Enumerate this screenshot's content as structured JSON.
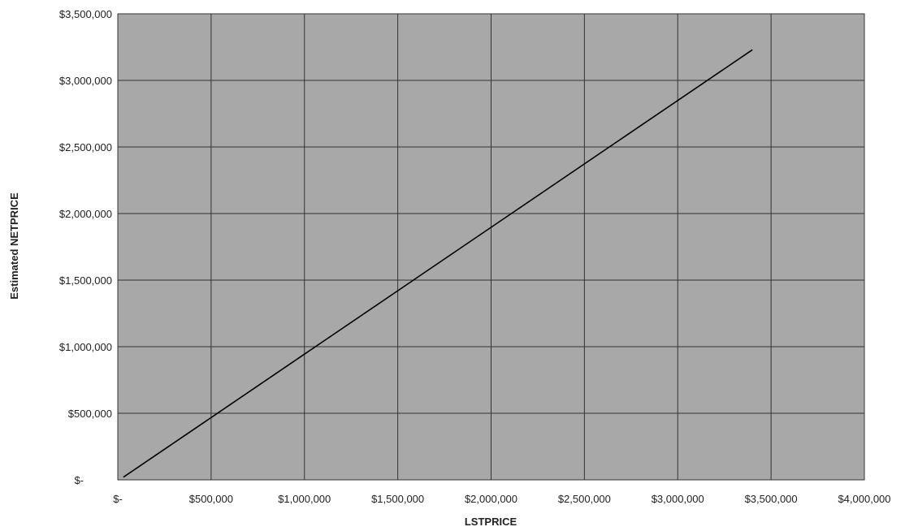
{
  "chart_data": {
    "type": "line",
    "title": "",
    "xlabel": "LSTPRICE",
    "ylabel": "Estimated NETPRICE",
    "xlim": [
      0,
      4000000
    ],
    "ylim": [
      0,
      3500000
    ],
    "x_ticks": [
      0,
      500000,
      1000000,
      1500000,
      2000000,
      2500000,
      3000000,
      3500000,
      4000000
    ],
    "y_ticks": [
      0,
      500000,
      1000000,
      1500000,
      2000000,
      2500000,
      3000000,
      3500000
    ],
    "x_tick_labels": [
      "$-",
      "$500,000",
      "$1,000,000",
      "$1,500,000",
      "$2,000,000",
      "$2,500,000",
      "$3,000,000",
      "$3,500,000",
      "$4,000,000"
    ],
    "y_tick_labels": [
      "$-",
      "$500,000",
      "$1,000,000",
      "$1,500,000",
      "$2,000,000",
      "$2,500,000",
      "$3,000,000",
      "$3,500,000"
    ],
    "grid": true,
    "legend": "none",
    "plot_background": "#a8a8a8",
    "line_color": "#000000",
    "series": [
      {
        "x": [
          30000,
          3400000
        ],
        "y": [
          20000,
          3230000
        ]
      }
    ]
  }
}
